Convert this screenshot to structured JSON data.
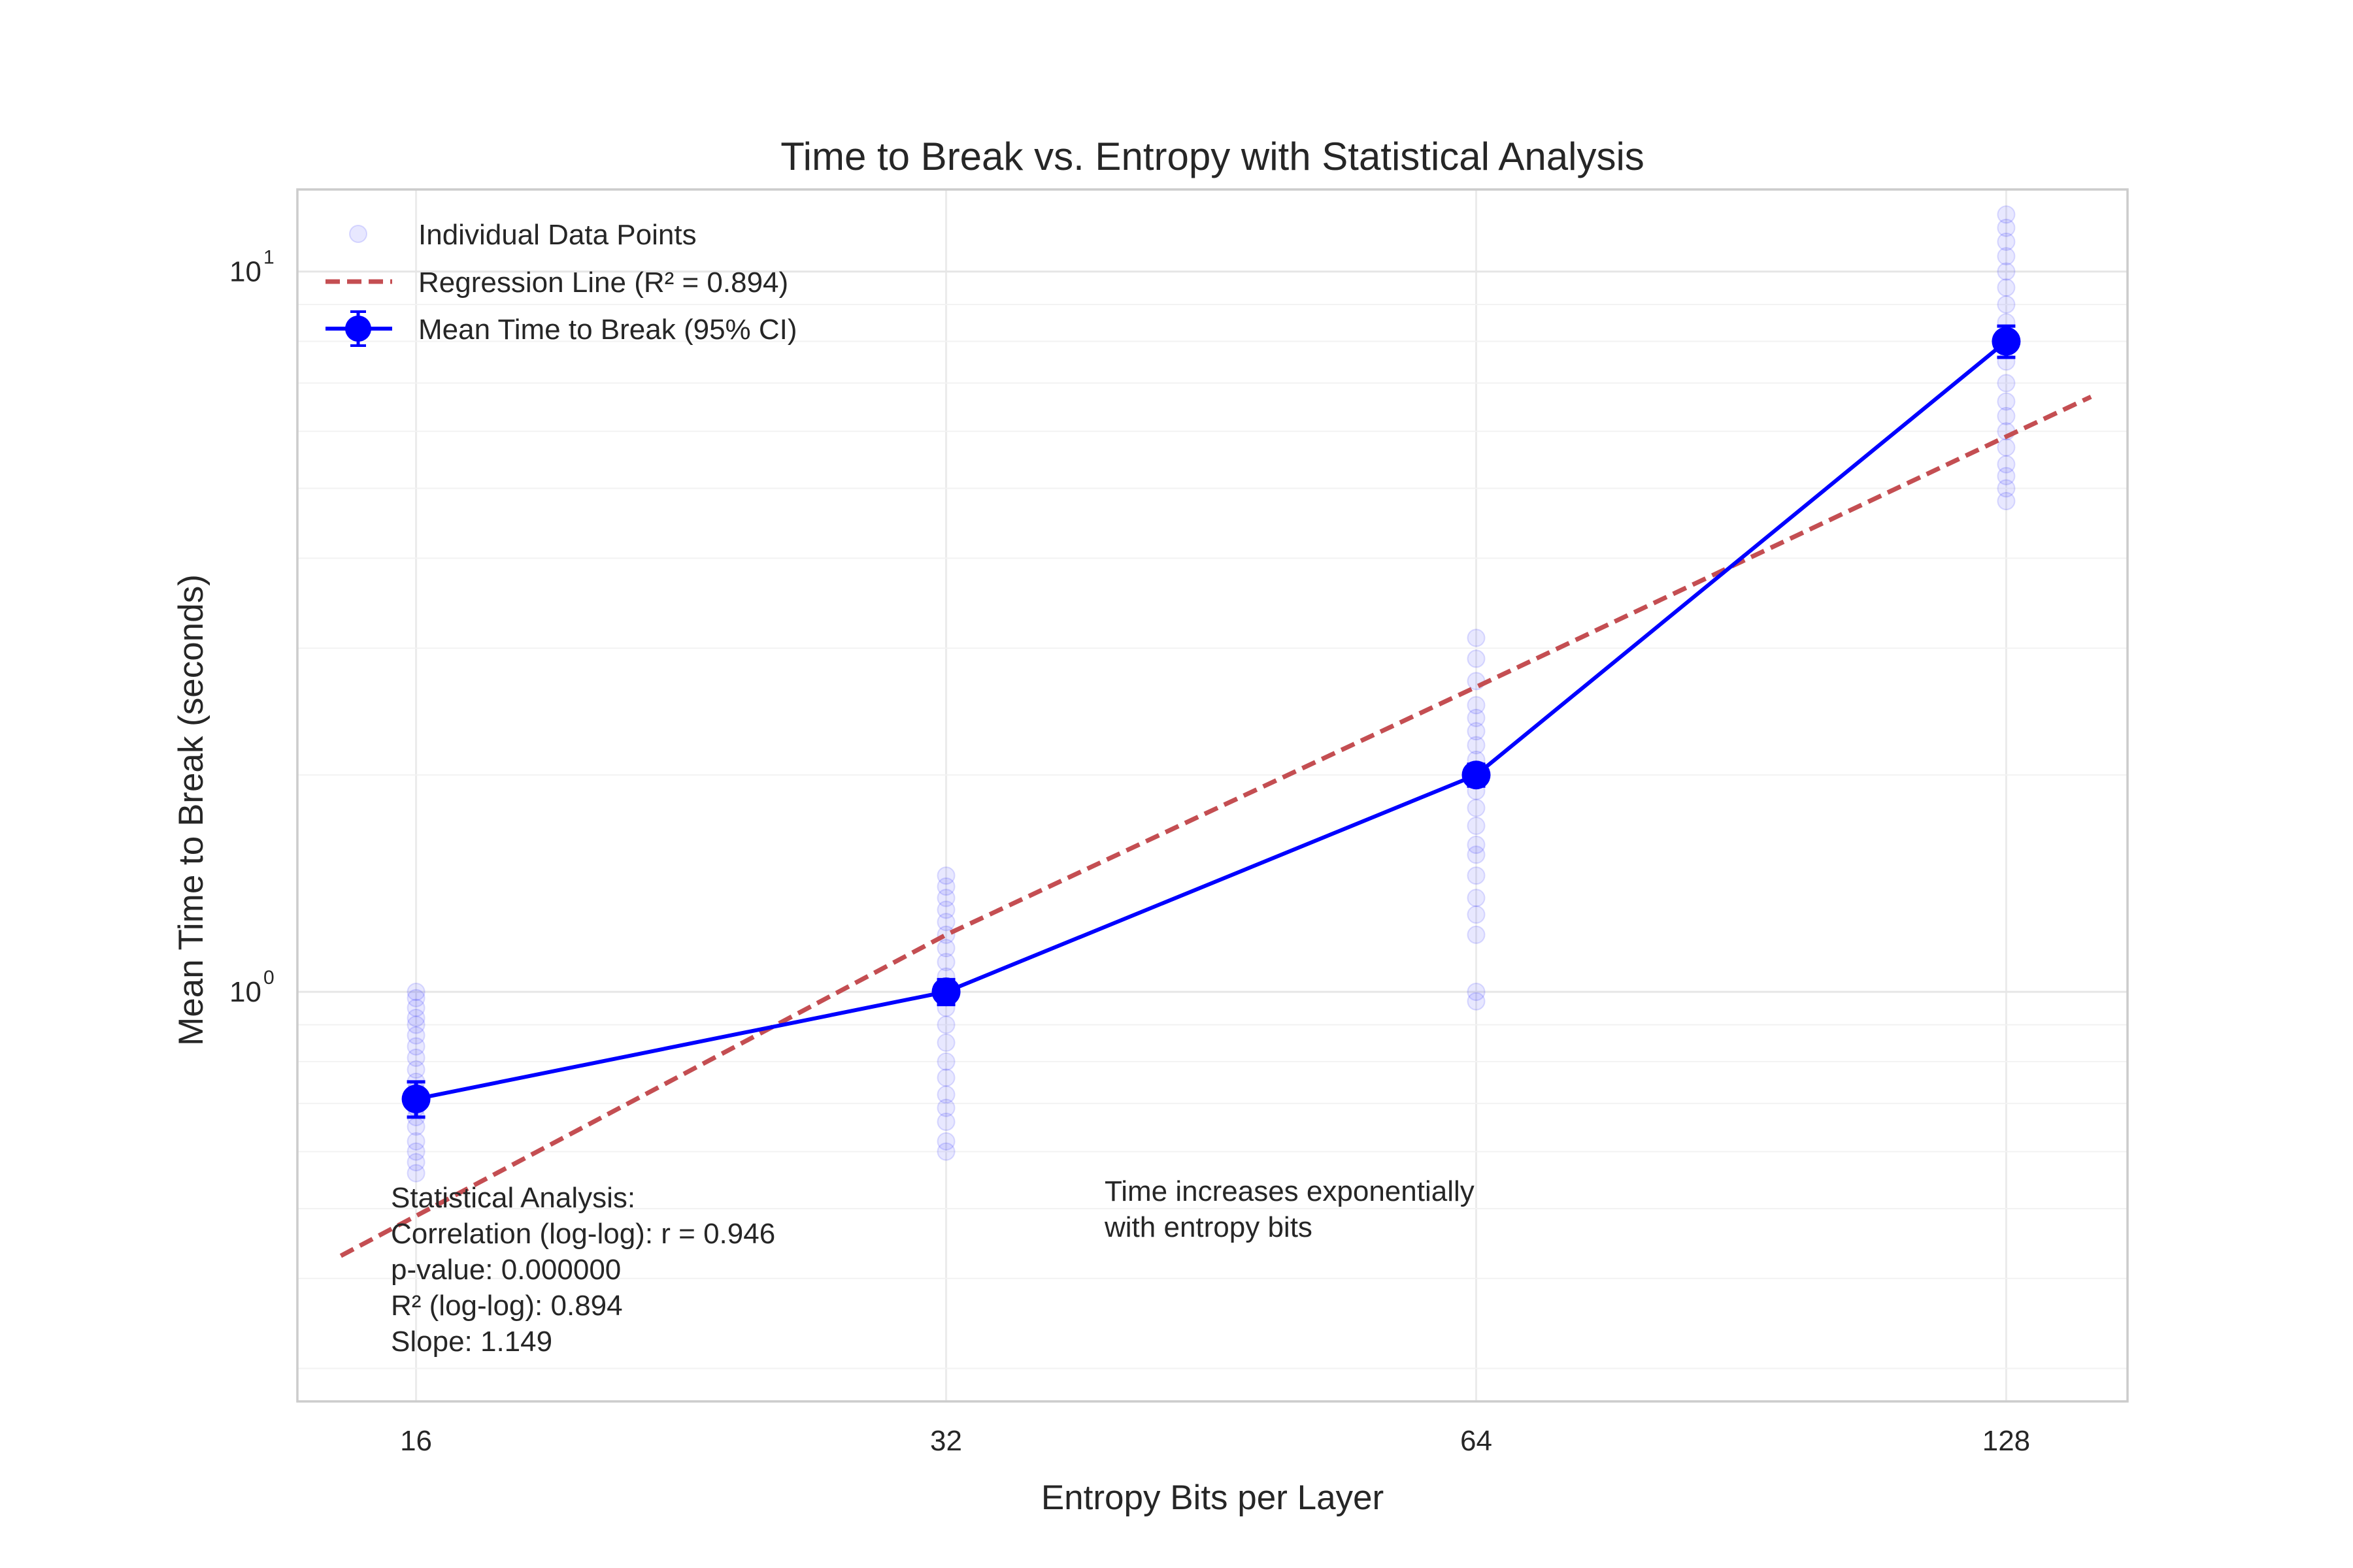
{
  "chart_data": {
    "type": "line",
    "title": "Time to Break vs. Entropy with Statistical Analysis",
    "xlabel": "Entropy Bits per Layer",
    "ylabel": "Mean Time to Break (seconds)",
    "x_scale": "log2",
    "y_scale": "log10",
    "xlim": [
      13.7,
      150
    ],
    "ylim": [
      0.27,
      13
    ],
    "x_ticks": [
      16,
      32,
      64,
      128
    ],
    "x_tick_labels": [
      "16",
      "32",
      "64",
      "128"
    ],
    "y_ticks": [
      1,
      10
    ],
    "y_tick_labels": [
      {
        "base": "10",
        "exp": "0"
      },
      {
        "base": "10",
        "exp": "1"
      }
    ],
    "grid": true,
    "legend_position": "upper-left",
    "legend": [
      {
        "label": "Individual Data Points"
      },
      {
        "label": "Regression Line (R² = 0.894)"
      },
      {
        "label": "Mean Time to Break (95% CI)"
      }
    ],
    "series": [
      {
        "name": "Mean Time to Break (95% CI)",
        "kind": "errorbar-line",
        "color": "#0000ff",
        "x": [
          16,
          32,
          64,
          128
        ],
        "y": [
          0.71,
          1.0,
          2.0,
          8.0
        ],
        "ci_low": [
          0.67,
          0.96,
          1.93,
          7.6
        ],
        "ci_high": [
          0.75,
          1.04,
          2.07,
          8.4
        ]
      },
      {
        "name": "Regression Line (R² = 0.894)",
        "kind": "dashed-line",
        "color": "#c44e52",
        "x": [
          14.5,
          32,
          64,
          128,
          143
        ],
        "y": [
          0.43,
          1.2,
          2.65,
          5.9,
          6.7
        ]
      },
      {
        "name": "Individual Data Points",
        "kind": "scatter",
        "color": "#0000ff",
        "x": [
          16,
          16,
          16,
          16,
          16,
          16,
          16,
          16,
          16,
          16,
          16,
          16,
          16,
          16,
          16,
          16,
          16,
          16,
          16,
          32,
          32,
          32,
          32,
          32,
          32,
          32,
          32,
          32,
          32,
          32,
          32,
          32,
          32,
          32,
          32,
          32,
          32,
          32,
          32,
          64,
          64,
          64,
          64,
          64,
          64,
          64,
          64,
          64,
          64,
          64,
          64,
          64,
          64,
          64,
          64,
          64,
          64,
          64,
          64,
          128,
          128,
          128,
          128,
          128,
          128,
          128,
          128,
          128,
          128,
          128,
          128,
          128,
          128,
          128,
          128,
          128,
          128,
          128
        ],
        "y": [
          1.0,
          0.98,
          0.95,
          0.92,
          0.9,
          0.87,
          0.84,
          0.81,
          0.78,
          0.75,
          0.73,
          0.71,
          0.69,
          0.67,
          0.65,
          0.62,
          0.6,
          0.58,
          0.56,
          1.45,
          1.4,
          1.35,
          1.3,
          1.25,
          1.2,
          1.15,
          1.1,
          1.05,
          1.0,
          0.95,
          0.9,
          0.85,
          0.8,
          0.76,
          0.72,
          0.69,
          0.66,
          0.62,
          0.6,
          3.1,
          2.9,
          2.7,
          2.5,
          2.4,
          2.3,
          2.2,
          2.1,
          2.0,
          1.9,
          1.8,
          1.7,
          1.6,
          1.55,
          1.45,
          1.35,
          1.28,
          1.2,
          1.0,
          0.97,
          12.0,
          11.5,
          11.0,
          10.5,
          10.0,
          9.5,
          9.0,
          8.5,
          8.0,
          7.5,
          7.0,
          6.6,
          6.3,
          6.0,
          5.7,
          5.4,
          5.2,
          5.0,
          4.8
        ]
      }
    ],
    "annotations": [
      {
        "id": "stats",
        "lines": [
          "Statistical Analysis:",
          "Correlation (log-log): r = 0.946",
          "p-value: 0.000000",
          "R² (log-log): 0.894",
          "Slope: 1.149"
        ]
      },
      {
        "id": "note",
        "lines": [
          "Time increases exponentially",
          "with entropy bits"
        ]
      }
    ]
  }
}
